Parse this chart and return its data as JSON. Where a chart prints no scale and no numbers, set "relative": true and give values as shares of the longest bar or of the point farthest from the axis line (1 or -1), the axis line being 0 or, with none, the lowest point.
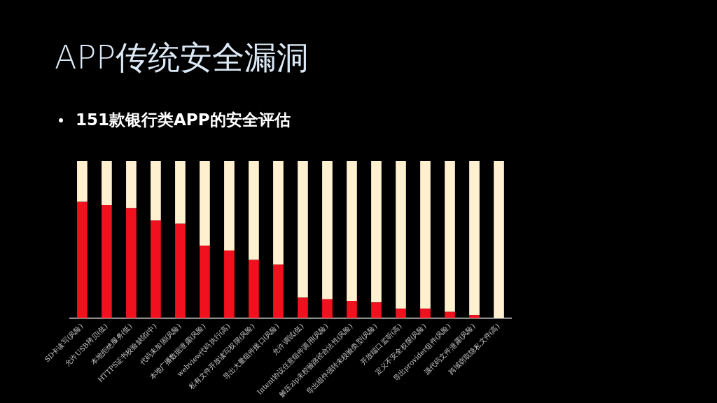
{
  "chart_data": {
    "type": "bar",
    "title": "APP传统安全漏洞",
    "subtitle": "151款银行类APP的安全评估",
    "relative": true,
    "stacked": true,
    "categories": [
      "SD卡读写(风险)",
      "允许USB拷贝(低)",
      "本地拒绝服务(低)",
      "HTTPS证书校验缺陷(中)",
      "代码未加固(风险)",
      "本地广播数据泄露(风险)",
      "webview代码执行(高)",
      "私有文件开放读写权限(风险)",
      "导出大量组件接口(风险)",
      "允许调试(低)",
      "Intent协议任意组件调用(风险)",
      "解压zip未校验路径合法性(风险)",
      "导出组件强转未校验类型(风险)",
      "开放端口监听(高)",
      "定义不安全权限(风险)",
      "导出provider组件(风险)",
      "源代码文件泄露(风险)",
      "跨域窃取隐私文件(高)"
    ],
    "series": [
      {
        "color": "#f0101e",
        "values": [
          0.74,
          0.72,
          0.7,
          0.62,
          0.6,
          0.46,
          0.43,
          0.37,
          0.34,
          0.13,
          0.12,
          0.11,
          0.1,
          0.06,
          0.06,
          0.04,
          0.02,
          0
        ]
      },
      {
        "color": "#fff0d0",
        "values": [
          0.26,
          0.28,
          0.3,
          0.38,
          0.4,
          0.54,
          0.57,
          0.63,
          0.66,
          0.87,
          0.88,
          0.89,
          0.9,
          0.94,
          0.94,
          0.96,
          0.98,
          1
        ]
      }
    ]
  }
}
